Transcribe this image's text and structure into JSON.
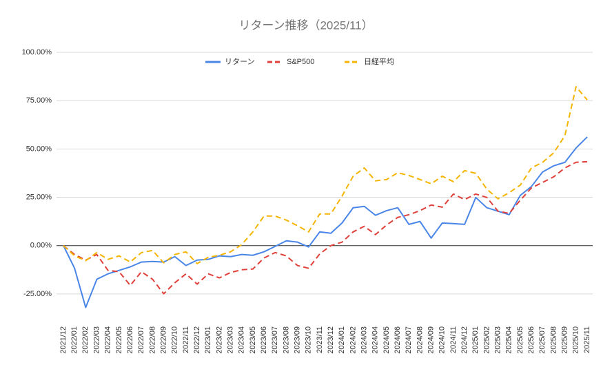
{
  "chart_data": {
    "type": "line",
    "title": "リターン推移（2025/11）",
    "categories": [
      "2021/12",
      "2022/01",
      "2022/02",
      "2022/03",
      "2022/04",
      "2022/05",
      "2022/06",
      "2022/07",
      "2022/08",
      "2022/09",
      "2022/10",
      "2022/11",
      "2022/12",
      "2023/01",
      "2023/02",
      "2023/03",
      "2023/04",
      "2023/05",
      "2023/06",
      "2023/07",
      "2023/08",
      "2023/09",
      "2023/10",
      "2023/11",
      "2023/12",
      "2024/01",
      "2024/02",
      "2024/03",
      "2024/04",
      "2024/05",
      "2024/06",
      "2024/07",
      "2024/08",
      "2024/09",
      "2024/10",
      "2024/11",
      "2024/12",
      "2025/01",
      "2025/02",
      "2025/03",
      "2025/04",
      "2025/05",
      "2025/06",
      "2025/07",
      "2025/08",
      "2025/09",
      "2025/10",
      "2025/11"
    ],
    "series": [
      {
        "name": "リターン",
        "color": "#4a86e8",
        "dash": false,
        "values": [
          0,
          -11.7,
          -32,
          -17.4,
          -14.6,
          -12.8,
          -11,
          -8.5,
          -8.2,
          -8.5,
          -5.7,
          -10.3,
          -7.5,
          -7.1,
          -5.3,
          -5.7,
          -4.6,
          -5,
          -3.2,
          -0.4,
          2.5,
          1.8,
          -0.7,
          7.1,
          6.4,
          11.7,
          19.6,
          20.3,
          15.7,
          18.1,
          19.6,
          11,
          12.5,
          3.9,
          11.7,
          11.4,
          11,
          24.9,
          19.6,
          17.8,
          16,
          26,
          30.6,
          38.1,
          41.3,
          43.1,
          50.5,
          56.2
        ]
      },
      {
        "name": "S&P500",
        "color": "#e0403a",
        "dash": true,
        "values": [
          0,
          -4.6,
          -7.5,
          -4.6,
          -12.8,
          -13.5,
          -20.6,
          -13.5,
          -17.4,
          -24.9,
          -19.2,
          -14.6,
          -19.9,
          -14.6,
          -16.7,
          -13.9,
          -12.5,
          -12.1,
          -6.4,
          -3.6,
          -5.3,
          -10.3,
          -11.7,
          -4.3,
          0,
          1.8,
          7.1,
          10,
          5.7,
          10.7,
          14.6,
          16,
          18.1,
          21,
          19.9,
          26.7,
          23.8,
          26.7,
          24.9,
          17.8,
          16.7,
          23.5,
          29.9,
          32.7,
          35.6,
          40.2,
          43.1,
          43.4
        ]
      },
      {
        "name": "日経平均",
        "color": "#f4b400",
        "dash": true,
        "values": [
          0,
          -5.3,
          -7.8,
          -3.6,
          -7.1,
          -5.3,
          -8.5,
          -3.6,
          -2.5,
          -8.9,
          -4.6,
          -3.2,
          -9.3,
          -6,
          -5,
          -3.2,
          0.5,
          7.1,
          15.3,
          15.3,
          13.2,
          10.3,
          7.1,
          16.4,
          16.4,
          25.6,
          35.9,
          40.2,
          33.5,
          34.2,
          37.7,
          36.3,
          34.2,
          32,
          35.9,
          33.1,
          38.8,
          37.4,
          29.2,
          24.2,
          27.4,
          31.3,
          40.2,
          43.1,
          48,
          56.9,
          82.2,
          75.4
        ]
      }
    ],
    "ylim": [
      -37.5,
      100
    ],
    "yticks": [
      {
        "value": -25,
        "label": "-25.00%"
      },
      {
        "value": 0,
        "label": "0.00%"
      },
      {
        "value": 25,
        "label": "25.00%"
      },
      {
        "value": 50,
        "label": "50.00%"
      },
      {
        "value": 75,
        "label": "75.00%"
      },
      {
        "value": 100,
        "label": "100.00%"
      }
    ],
    "grid": true,
    "legend": "top"
  }
}
